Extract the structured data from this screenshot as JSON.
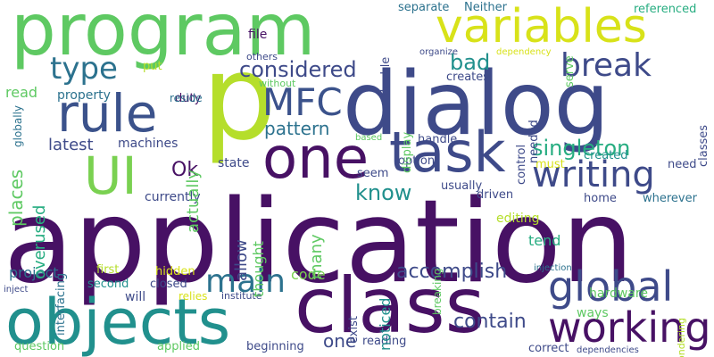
{
  "palette": {
    "dark_purple": "#471164",
    "indigo": "#3d4a89",
    "blue": "#355f8d",
    "teal_blue": "#2c728e",
    "teal": "#21908d",
    "sea_green": "#27ad81",
    "green": "#5ec962",
    "lime": "#addc30",
    "yellow": "#d8e219"
  },
  "words": [
    {
      "text": "application",
      "color": "#471164"
    },
    {
      "text": "dialog",
      "color": "#3e4a89"
    },
    {
      "text": "program",
      "color": "#5ec962"
    },
    {
      "text": "class",
      "color": "#471164"
    },
    {
      "text": "objects",
      "color": "#21908d"
    },
    {
      "text": "p",
      "color": "#b5de2b"
    },
    {
      "text": "one",
      "color": "#471164"
    },
    {
      "text": "task",
      "color": "#3e4a89"
    },
    {
      "text": "rule",
      "color": "#3b528b"
    },
    {
      "text": "variables",
      "color": "#d8e219"
    },
    {
      "text": "UI",
      "color": "#7ad151"
    },
    {
      "text": "working",
      "color": "#471164"
    },
    {
      "text": "global",
      "color": "#3e4a89"
    },
    {
      "text": "writing",
      "color": "#3e4a89"
    },
    {
      "text": "MFC",
      "color": "#3b528b"
    },
    {
      "text": "type",
      "color": "#2c728e"
    },
    {
      "text": "break",
      "color": "#3e4a89"
    },
    {
      "text": "main",
      "color": "#2c728e"
    },
    {
      "text": "considered",
      "color": "#3e4a89"
    },
    {
      "text": "bad",
      "color": "#21908d"
    },
    {
      "text": "singleton",
      "color": "#27ad81"
    },
    {
      "text": "know",
      "color": "#21908d"
    },
    {
      "text": "pattern",
      "color": "#2c728e"
    },
    {
      "text": "accomplish",
      "color": "#3e4a89"
    },
    {
      "text": "contain",
      "color": "#3e4a89"
    },
    {
      "text": "actually",
      "color": "#5ec962"
    },
    {
      "text": "places",
      "color": "#5ec962"
    },
    {
      "text": "overused",
      "color": "#27ad81"
    },
    {
      "text": "latest",
      "color": "#3e4a89"
    },
    {
      "text": "allow",
      "color": "#3e4a89"
    },
    {
      "text": "many",
      "color": "#5ec962"
    },
    {
      "text": "Ok",
      "color": "#471164"
    },
    {
      "text": "read",
      "color": "#5ec962"
    },
    {
      "text": "one",
      "color": "#3e4a89"
    },
    {
      "text": "tend",
      "color": "#27ad81"
    },
    {
      "text": "code",
      "color": "#7ad151"
    },
    {
      "text": "noticed",
      "color": "#21908d"
    },
    {
      "text": "project",
      "color": "#2c728e"
    },
    {
      "text": "thought",
      "color": "#5ec962"
    },
    {
      "text": "ways",
      "color": "#5ec962"
    },
    {
      "text": "hardware",
      "color": "#5ec962"
    },
    {
      "text": "editing",
      "color": "#b5de2b"
    },
    {
      "text": "file",
      "color": "#471164"
    },
    {
      "text": "property",
      "color": "#2c728e"
    },
    {
      "text": "duty",
      "color": "#471164"
    },
    {
      "text": "put",
      "color": "#b5de2b"
    },
    {
      "text": "others",
      "color": "#3e4a89"
    },
    {
      "text": "without",
      "color": "#5ec962"
    },
    {
      "text": "reside",
      "color": "#2c728e"
    },
    {
      "text": "machines",
      "color": "#3e4a89"
    },
    {
      "text": "state",
      "color": "#3e4a89"
    },
    {
      "text": "currently",
      "color": "#3e4a89"
    },
    {
      "text": "hidden",
      "color": "#d8e219"
    },
    {
      "text": "second",
      "color": "#21908d"
    },
    {
      "text": "first",
      "color": "#b5de2b"
    },
    {
      "text": "closed",
      "color": "#3e4a89"
    },
    {
      "text": "relies",
      "color": "#d8e219"
    },
    {
      "text": "will",
      "color": "#3e4a89"
    },
    {
      "text": "institute",
      "color": "#3e4a89"
    },
    {
      "text": "inject",
      "color": "#3e4a89"
    },
    {
      "text": "question",
      "color": "#5ec962"
    },
    {
      "text": "applied",
      "color": "#5ec962"
    },
    {
      "text": "beginning",
      "color": "#3e4a89"
    },
    {
      "text": "reading",
      "color": "#3e4a89"
    },
    {
      "text": "correct",
      "color": "#3e4a89"
    },
    {
      "text": "dependencies",
      "color": "#3e4a89"
    },
    {
      "text": "injection",
      "color": "#2c728e"
    },
    {
      "text": "wondering",
      "color": "#b5de2b"
    },
    {
      "text": "exist",
      "color": "#3e4a89"
    },
    {
      "text": "interfacing",
      "color": "#2c728e"
    },
    {
      "text": "globally",
      "color": "#2c728e"
    },
    {
      "text": "separate",
      "color": "#2c728e"
    },
    {
      "text": "Neither",
      "color": "#2c728e"
    },
    {
      "text": "double",
      "color": "#3e4a89"
    },
    {
      "text": "display",
      "color": "#5ec962"
    },
    {
      "text": "organize",
      "color": "#3e4a89"
    },
    {
      "text": "dependency",
      "color": "#d8e219"
    },
    {
      "text": "creates",
      "color": "#3e4a89"
    },
    {
      "text": "needed",
      "color": "#3e4a89"
    },
    {
      "text": "serve",
      "color": "#5ec962"
    },
    {
      "text": "referenced",
      "color": "#27ad81"
    },
    {
      "text": "classes",
      "color": "#3e4a89"
    },
    {
      "text": "control",
      "color": "#3e4a89"
    },
    {
      "text": "handle",
      "color": "#3e4a89"
    },
    {
      "text": "breaking",
      "color": "#5ec962"
    },
    {
      "text": "based",
      "color": "#5ec962"
    },
    {
      "text": "option",
      "color": "#3e4a89"
    },
    {
      "text": "seem",
      "color": "#3e4a89"
    },
    {
      "text": "created",
      "color": "#21908d"
    },
    {
      "text": "must",
      "color": "#d8e219"
    },
    {
      "text": "need",
      "color": "#3e4a89"
    },
    {
      "text": "usually",
      "color": "#3e4a89"
    },
    {
      "text": "driven",
      "color": "#3e4a89"
    },
    {
      "text": "home",
      "color": "#3e4a89"
    },
    {
      "text": "wherever",
      "color": "#2c728e"
    }
  ]
}
